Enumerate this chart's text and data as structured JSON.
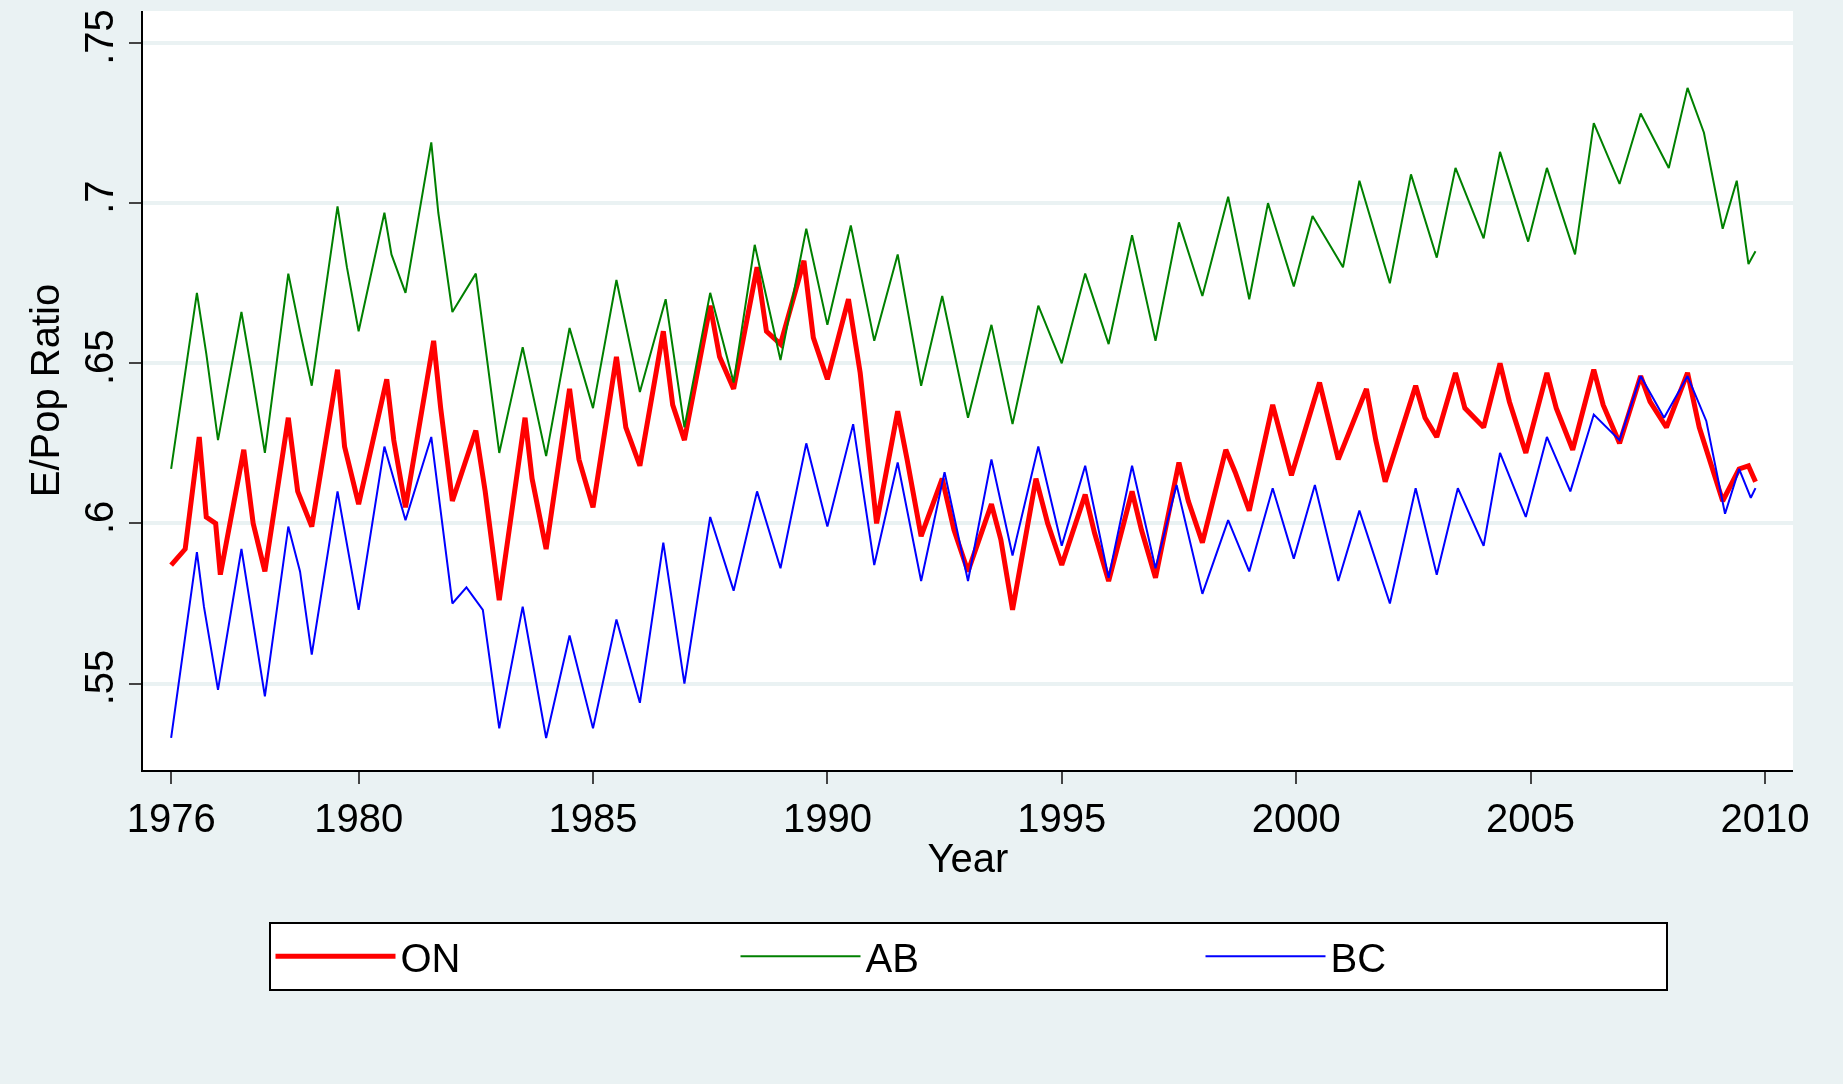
{
  "chart_data": {
    "type": "line",
    "xlabel": "Year",
    "ylabel": "E/Pop Ratio",
    "xlim": [
      1975.4,
      2010.6
    ],
    "xticks": [
      1976,
      1980,
      1985,
      1990,
      1995,
      2000,
      2005,
      2010
    ],
    "ylim": [
      0.523,
      0.76
    ],
    "yticks": [
      {
        "value": 0.55,
        "label": ".55"
      },
      {
        "value": 0.6,
        "label": ".6"
      },
      {
        "value": 0.65,
        "label": ".65"
      },
      {
        "value": 0.7,
        "label": ".7"
      },
      {
        "value": 0.75,
        "label": ".75"
      }
    ],
    "grid": "y",
    "legend": "bottom",
    "marker": "none",
    "line_style": "solid",
    "series": [
      {
        "name": "ON",
        "color": "#ff0000",
        "x": [
          1976.0,
          1976.3,
          1976.6,
          1976.75,
          1976.95,
          1977.05,
          1977.55,
          1977.75,
          1978.0,
          1978.5,
          1978.7,
          1979.0,
          1979.55,
          1979.7,
          1980.0,
          1980.6,
          1980.75,
          1981.0,
          1981.6,
          1981.75,
          1982.0,
          1982.5,
          1982.7,
          1983.0,
          1983.55,
          1983.7,
          1984.0,
          1984.5,
          1984.7,
          1985.0,
          1985.5,
          1985.7,
          1986.0,
          1986.5,
          1986.7,
          1986.95,
          1987.5,
          1987.7,
          1988.0,
          1988.5,
          1988.7,
          1989.0,
          1989.5,
          1989.7,
          1990.0,
          1990.45,
          1990.7,
          1991.05,
          1991.5,
          1991.7,
          1992.0,
          1992.45,
          1992.7,
          1993.0,
          1993.5,
          1993.7,
          1993.95,
          1994.45,
          1994.7,
          1995.0,
          1995.5,
          1995.7,
          1996.0,
          1996.5,
          1996.7,
          1997.0,
          1997.5,
          1997.7,
          1998.0,
          1998.5,
          1998.7,
          1999.0,
          1999.5,
          1999.7,
          1999.9,
          2000.5,
          2000.7,
          2000.9,
          2001.5,
          2001.7,
          2001.9,
          2002.55,
          2002.75,
          2003.0,
          2003.4,
          2003.6,
          2004.0,
          2004.35,
          2004.55,
          2004.9,
          2005.35,
          2005.55,
          2005.9,
          2006.35,
          2006.55,
          2006.9,
          2007.35,
          2007.55,
          2007.9,
          2008.35,
          2008.6,
          2009.1,
          2009.45,
          2009.65,
          2009.8
        ],
        "values": [
          0.587,
          0.592,
          0.627,
          0.602,
          0.6,
          0.584,
          0.623,
          0.6,
          0.585,
          0.633,
          0.61,
          0.599,
          0.648,
          0.624,
          0.606,
          0.645,
          0.626,
          0.605,
          0.657,
          0.636,
          0.607,
          0.629,
          0.61,
          0.576,
          0.633,
          0.614,
          0.592,
          0.642,
          0.62,
          0.605,
          0.652,
          0.63,
          0.618,
          0.66,
          0.637,
          0.626,
          0.668,
          0.652,
          0.642,
          0.68,
          0.66,
          0.656,
          0.682,
          0.658,
          0.645,
          0.67,
          0.647,
          0.6,
          0.635,
          0.62,
          0.596,
          0.614,
          0.598,
          0.585,
          0.606,
          0.595,
          0.573,
          0.614,
          0.6,
          0.587,
          0.609,
          0.597,
          0.582,
          0.61,
          0.598,
          0.583,
          0.619,
          0.607,
          0.594,
          0.623,
          0.616,
          0.604,
          0.637,
          0.626,
          0.615,
          0.644,
          0.632,
          0.62,
          0.642,
          0.626,
          0.613,
          0.643,
          0.633,
          0.627,
          0.647,
          0.636,
          0.63,
          0.65,
          0.638,
          0.622,
          0.647,
          0.636,
          0.623,
          0.648,
          0.637,
          0.625,
          0.646,
          0.638,
          0.63,
          0.647,
          0.63,
          0.607,
          0.617,
          0.618,
          0.613
        ]
      },
      {
        "name": "AB",
        "color": "#008000",
        "x": [
          1976.0,
          1976.55,
          1976.75,
          1977.0,
          1977.5,
          1977.7,
          1978.0,
          1978.5,
          1978.75,
          1979.0,
          1979.55,
          1979.75,
          1980.0,
          1980.55,
          1980.7,
          1981.0,
          1981.55,
          1981.7,
          1982.0,
          1982.5,
          1983.0,
          1983.5,
          1984.0,
          1984.5,
          1985.0,
          1985.5,
          1986.0,
          1986.55,
          1986.95,
          1987.5,
          1988.0,
          1988.45,
          1989.0,
          1989.55,
          1990.0,
          1990.5,
          1991.0,
          1991.5,
          1992.0,
          1992.45,
          1993.0,
          1993.5,
          1993.95,
          1994.5,
          1995.0,
          1995.5,
          1996.0,
          1996.5,
          1997.0,
          1997.5,
          1998.0,
          1998.55,
          1999.0,
          1999.4,
          1999.95,
          2000.35,
          2001.0,
          2001.35,
          2002.0,
          2002.45,
          2003.0,
          2003.4,
          2004.0,
          2004.35,
          2004.95,
          2005.35,
          2005.95,
          2006.35,
          2006.9,
          2007.35,
          2007.95,
          2008.35,
          2008.7,
          2009.1,
          2009.4,
          2009.65,
          2009.8
        ],
        "values": [
          0.617,
          0.672,
          0.653,
          0.626,
          0.666,
          0.649,
          0.622,
          0.678,
          0.66,
          0.643,
          0.699,
          0.68,
          0.66,
          0.697,
          0.684,
          0.672,
          0.719,
          0.697,
          0.666,
          0.678,
          0.622,
          0.655,
          0.621,
          0.661,
          0.636,
          0.676,
          0.641,
          0.67,
          0.63,
          0.672,
          0.644,
          0.687,
          0.651,
          0.692,
          0.662,
          0.693,
          0.657,
          0.684,
          0.643,
          0.671,
          0.633,
          0.662,
          0.631,
          0.668,
          0.65,
          0.678,
          0.656,
          0.69,
          0.657,
          0.694,
          0.671,
          0.702,
          0.67,
          0.7,
          0.674,
          0.696,
          0.68,
          0.707,
          0.675,
          0.709,
          0.683,
          0.711,
          0.689,
          0.716,
          0.688,
          0.711,
          0.684,
          0.725,
          0.706,
          0.728,
          0.711,
          0.736,
          0.722,
          0.692,
          0.707,
          0.681,
          0.685
        ]
      },
      {
        "name": "BC",
        "color": "#0000ff",
        "x": [
          1976.0,
          1976.55,
          1976.7,
          1977.0,
          1977.5,
          1978.0,
          1978.5,
          1978.75,
          1979.0,
          1979.55,
          1980.0,
          1980.55,
          1981.0,
          1981.55,
          1982.0,
          1982.3,
          1982.65,
          1983.0,
          1983.5,
          1984.0,
          1984.5,
          1985.0,
          1985.5,
          1986.0,
          1986.5,
          1986.95,
          1987.5,
          1988.0,
          1988.5,
          1989.0,
          1989.55,
          1990.0,
          1990.55,
          1991.0,
          1991.5,
          1992.0,
          1992.5,
          1993.0,
          1993.5,
          1993.95,
          1994.5,
          1995.0,
          1995.5,
          1996.0,
          1996.5,
          1997.0,
          1997.45,
          1998.0,
          1998.55,
          1999.0,
          1999.5,
          1999.95,
          2000.4,
          2000.9,
          2001.35,
          2002.0,
          2002.55,
          2003.0,
          2003.45,
          2004.0,
          2004.35,
          2004.9,
          2005.35,
          2005.85,
          2006.35,
          2006.9,
          2007.35,
          2007.85,
          2008.35,
          2008.75,
          2009.15,
          2009.45,
          2009.7,
          2009.8
        ],
        "values": [
          0.533,
          0.591,
          0.574,
          0.548,
          0.592,
          0.546,
          0.599,
          0.585,
          0.559,
          0.61,
          0.573,
          0.624,
          0.601,
          0.627,
          0.575,
          0.58,
          0.573,
          0.536,
          0.574,
          0.533,
          0.565,
          0.536,
          0.57,
          0.544,
          0.594,
          0.55,
          0.602,
          0.579,
          0.61,
          0.586,
          0.625,
          0.599,
          0.631,
          0.587,
          0.619,
          0.582,
          0.616,
          0.582,
          0.62,
          0.59,
          0.624,
          0.593,
          0.618,
          0.583,
          0.618,
          0.586,
          0.612,
          0.578,
          0.601,
          0.585,
          0.611,
          0.589,
          0.612,
          0.582,
          0.604,
          0.575,
          0.611,
          0.584,
          0.611,
          0.593,
          0.622,
          0.602,
          0.627,
          0.61,
          0.634,
          0.626,
          0.646,
          0.633,
          0.646,
          0.632,
          0.603,
          0.617,
          0.608,
          0.611
        ]
      }
    ]
  }
}
